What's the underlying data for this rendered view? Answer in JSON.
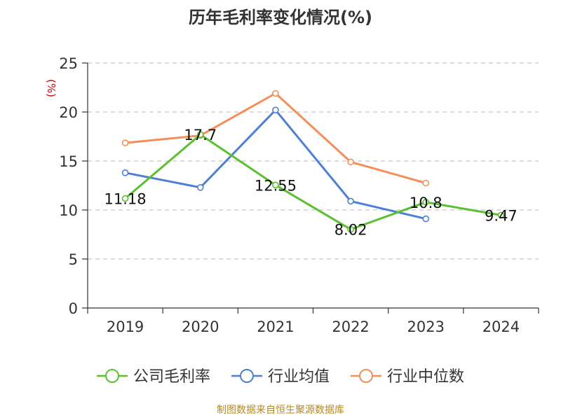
{
  "chart_data": {
    "type": "line",
    "title": "历年毛利率变化情况(%)",
    "xlabel": "",
    "ylabel": "(%)",
    "categories": [
      "2019",
      "2020",
      "2021",
      "2022",
      "2023",
      "2024"
    ],
    "ylim": [
      0,
      25
    ],
    "yticks": [
      0,
      5,
      10,
      15,
      20,
      25
    ],
    "grid": "horizontal-dashed",
    "legend_position": "bottom",
    "series": [
      {
        "name": "公司毛利率",
        "color": "#5ac030",
        "values": [
          11.18,
          17.7,
          12.55,
          8.02,
          10.8,
          9.47
        ],
        "data_labels": [
          "11.18",
          "17.7",
          "12.55",
          "8.02",
          "10.8",
          "9.47"
        ]
      },
      {
        "name": "行业均值",
        "color": "#4e7fd6",
        "values": [
          13.8,
          12.3,
          20.2,
          10.9,
          9.1,
          null
        ]
      },
      {
        "name": "行业中位数",
        "color": "#f58f59",
        "values": [
          16.85,
          17.6,
          21.9,
          14.9,
          12.75,
          null
        ]
      }
    ]
  },
  "source": "制图数据来自恒生聚源数据库"
}
